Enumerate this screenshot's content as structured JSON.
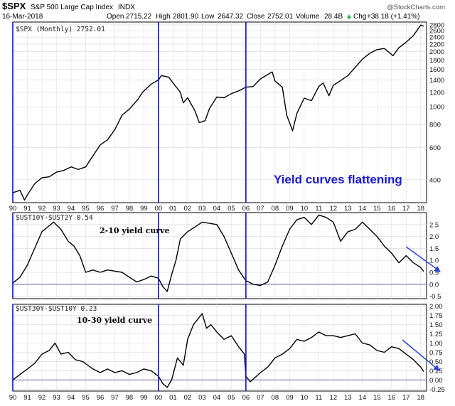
{
  "header": {
    "symbol": "$SPX",
    "name": "S&P 500 Large Cap Index",
    "exchange": "INDX",
    "date": "16-Mar-2018",
    "open_label": "Open",
    "open": "2715.22",
    "high_label": "High",
    "high": "2801.90",
    "low_label": "Low",
    "low": "2647.32",
    "close_label": "Close",
    "close": "2752.01",
    "volume_label": "Volume",
    "volume": "28.4B",
    "chg_label": "Chg",
    "chg": "+38.18 (+1.41%)",
    "up_arrow": "▲",
    "copyright": "@StockCharts.com"
  },
  "colors": {
    "line": "#000000",
    "vline": "#1010c8",
    "arrow": "#2a46d8",
    "zero": "#6060a0",
    "grid": "#d8d8d8"
  },
  "chart_data": [
    {
      "type": "line",
      "legend": "$SPX (Monthly) 2752.01",
      "annotation": "Yield curves flattening",
      "scale": "log",
      "ylim": [
        300,
        2900
      ],
      "yticks": [
        400,
        600,
        800,
        1000,
        1200,
        1400,
        1600,
        1800,
        2000,
        2200,
        2400,
        2600,
        2800
      ],
      "x_ticks": [
        "90",
        "91",
        "92",
        "93",
        "94",
        "95",
        "96",
        "97",
        "98",
        "99",
        "00",
        "01",
        "02",
        "03",
        "04",
        "05",
        "06",
        "07",
        "08",
        "09",
        "10",
        "11",
        "12",
        "13",
        "14",
        "15",
        "16",
        "17",
        "18"
      ],
      "x": [
        1990.0,
        1990.5,
        1990.8,
        1991.0,
        1991.5,
        1992.0,
        1992.5,
        1993.0,
        1993.5,
        1994.0,
        1994.5,
        1995.0,
        1995.5,
        1996.0,
        1996.5,
        1997.0,
        1997.5,
        1998.0,
        1998.6,
        1998.9,
        1999.5,
        2000.0,
        2000.2,
        2000.7,
        2001.0,
        2001.5,
        2001.7,
        2002.0,
        2002.5,
        2002.8,
        2003.2,
        2003.5,
        2004.0,
        2004.5,
        2005.0,
        2005.5,
        2006.0,
        2006.5,
        2007.0,
        2007.8,
        2008.0,
        2008.5,
        2008.8,
        2009.2,
        2009.5,
        2010.0,
        2010.5,
        2011.0,
        2011.3,
        2011.7,
        2012.0,
        2012.5,
        2013.0,
        2013.5,
        2014.0,
        2014.5,
        2015.0,
        2015.5,
        2016.1,
        2016.5,
        2017.0,
        2017.5,
        2018.0,
        2018.2
      ],
      "values": [
        340,
        350,
        310,
        330,
        380,
        410,
        415,
        440,
        450,
        470,
        455,
        470,
        540,
        620,
        660,
        750,
        900,
        970,
        1100,
        1200,
        1330,
        1400,
        1480,
        1450,
        1350,
        1200,
        1050,
        1120,
        950,
        820,
        840,
        980,
        1130,
        1120,
        1180,
        1220,
        1280,
        1290,
        1420,
        1550,
        1380,
        1280,
        900,
        740,
        920,
        1115,
        1080,
        1290,
        1350,
        1150,
        1310,
        1390,
        1480,
        1640,
        1820,
        1960,
        2050,
        2080,
        1900,
        2100,
        2250,
        2450,
        2790,
        2752
      ]
    },
    {
      "type": "line",
      "legend": "$UST10Y-$UST2Y 0.54",
      "annotation": "2-10 yield curve",
      "ylim": [
        -0.6,
        3.0
      ],
      "yticks": [
        -0.5,
        0.0,
        0.5,
        1.0,
        1.5,
        2.0,
        2.5
      ],
      "x": [
        1990.0,
        1990.5,
        1991.0,
        1991.5,
        1992.0,
        1992.5,
        1992.8,
        1993.3,
        1993.8,
        1994.2,
        1994.6,
        1995.0,
        1995.5,
        1996.0,
        1996.5,
        1997.0,
        1997.5,
        1998.0,
        1998.5,
        1999.0,
        1999.5,
        2000.0,
        2000.3,
        2000.6,
        2000.9,
        2001.2,
        2001.5,
        2002.0,
        2002.5,
        2003.0,
        2003.5,
        2004.0,
        2004.5,
        2005.0,
        2005.5,
        2006.0,
        2006.5,
        2007.0,
        2007.5,
        2008.0,
        2008.5,
        2009.0,
        2009.5,
        2010.0,
        2010.5,
        2011.0,
        2011.5,
        2012.0,
        2012.5,
        2013.0,
        2013.5,
        2014.0,
        2014.5,
        2015.0,
        2015.5,
        2016.0,
        2016.5,
        2017.0,
        2017.5,
        2018.0,
        2018.2
      ],
      "values": [
        0.05,
        0.3,
        0.8,
        1.5,
        2.2,
        2.45,
        2.6,
        2.3,
        1.8,
        1.6,
        1.2,
        0.5,
        0.6,
        0.5,
        0.6,
        0.55,
        0.5,
        0.3,
        0.1,
        0.2,
        0.35,
        0.25,
        -0.1,
        -0.3,
        0.4,
        1.0,
        1.9,
        2.2,
        2.4,
        2.6,
        2.55,
        2.5,
        2.0,
        1.3,
        0.6,
        0.15,
        0.0,
        -0.05,
        0.1,
        0.8,
        1.6,
        2.3,
        2.7,
        2.8,
        2.5,
        2.9,
        2.8,
        2.6,
        1.8,
        2.2,
        2.3,
        2.6,
        2.3,
        2.0,
        1.6,
        1.3,
        0.9,
        1.2,
        0.9,
        0.7,
        0.54
      ]
    },
    {
      "type": "line",
      "legend": "$UST30Y-$UST10Y 0.23",
      "annotation": "10-30 yield curve",
      "ylim": [
        -0.3,
        2.05
      ],
      "yticks": [
        -0.25,
        0.0,
        0.25,
        0.5,
        0.75,
        1.0,
        1.25,
        1.5,
        1.75,
        2.0
      ],
      "x": [
        1990.0,
        1990.5,
        1991.0,
        1991.5,
        1992.0,
        1992.5,
        1992.9,
        1993.3,
        1993.8,
        1994.3,
        1994.8,
        1995.5,
        1996.0,
        1996.5,
        1997.0,
        1997.5,
        1998.0,
        1998.5,
        1999.0,
        1999.5,
        2000.0,
        2000.3,
        2000.6,
        2000.9,
        2001.3,
        2001.7,
        2002.0,
        2002.4,
        2002.8,
        2003.0,
        2003.3,
        2003.6,
        2004.0,
        2004.5,
        2005.0,
        2005.5,
        2005.9,
        2006.0,
        2006.3,
        2007.0,
        2007.5,
        2008.0,
        2008.5,
        2009.0,
        2009.5,
        2010.0,
        2010.5,
        2011.0,
        2011.5,
        2012.0,
        2012.5,
        2013.0,
        2013.5,
        2014.0,
        2014.5,
        2015.0,
        2015.5,
        2016.0,
        2016.5,
        2017.0,
        2017.5,
        2018.0,
        2018.2
      ],
      "values": [
        0.0,
        0.15,
        0.3,
        0.45,
        0.7,
        0.8,
        1.0,
        0.7,
        0.75,
        0.55,
        0.5,
        0.3,
        0.2,
        0.3,
        0.2,
        0.25,
        0.15,
        0.2,
        0.3,
        0.25,
        0.1,
        -0.1,
        -0.2,
        0.0,
        0.6,
        0.4,
        1.1,
        1.5,
        1.7,
        1.8,
        1.4,
        1.5,
        1.3,
        1.1,
        1.2,
        0.9,
        0.7,
        0.1,
        -0.05,
        0.2,
        0.35,
        0.6,
        0.7,
        0.85,
        1.1,
        1.05,
        1.15,
        1.3,
        1.2,
        1.2,
        1.15,
        1.2,
        1.25,
        1.0,
        0.95,
        0.8,
        0.75,
        0.9,
        0.85,
        0.7,
        0.55,
        0.35,
        0.23
      ]
    }
  ]
}
